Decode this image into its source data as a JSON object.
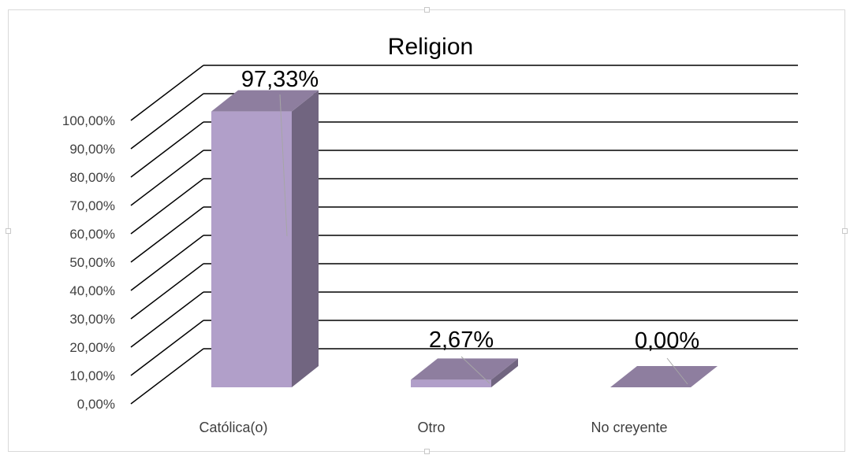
{
  "chart_data": {
    "type": "bar",
    "title": "Religion",
    "categories": [
      "Católica(o)",
      "Otro",
      "No creyente"
    ],
    "values": [
      97.33,
      2.67,
      0.0
    ],
    "data_labels": [
      "97,33%",
      "2,67%",
      "0,00%"
    ],
    "y_ticks": [
      "0,00%",
      "10,00%",
      "20,00%",
      "30,00%",
      "40,00%",
      "50,00%",
      "60,00%",
      "70,00%",
      "80,00%",
      "90,00%",
      "100,00%"
    ],
    "ylim": [
      0,
      100
    ],
    "grid": true,
    "style": "3d-column",
    "colors": {
      "bar_front": "#b19fc9",
      "bar_top": "#8e7e9f",
      "bar_side": "#716580",
      "grid": "#000000",
      "label": "#404040"
    }
  }
}
